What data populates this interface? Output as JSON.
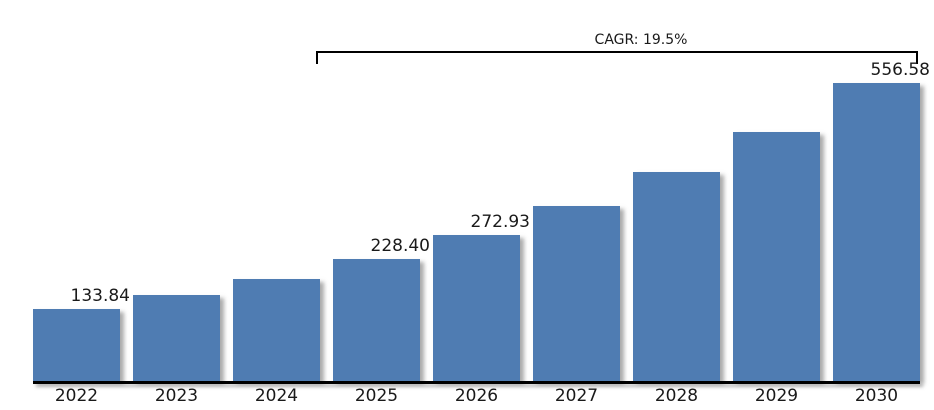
{
  "chart_data": {
    "type": "bar",
    "title": "",
    "xlabel": "",
    "ylabel": "",
    "categories": [
      "2022",
      "2023",
      "2024",
      "2025",
      "2026",
      "2027",
      "2028",
      "2029",
      "2030"
    ],
    "values": [
      133.84,
      159.94,
      191.13,
      228.4,
      272.93,
      326.15,
      389.75,
      465.75,
      556.58
    ],
    "value_labels_shown": [
      "133.84",
      "",
      "",
      "228.40",
      "272.93",
      "",
      "",
      "",
      "556.58"
    ],
    "ylim": [
      0,
      580
    ],
    "grid": false,
    "legend": "none",
    "annotation": {
      "label": "CAGR: 19.5%",
      "span_start_category": "2025",
      "span_end_category": "2030"
    }
  },
  "colors": {
    "bar_fill": "#4f7cb2",
    "axis_line": "#000000",
    "text": "#1a1a1a",
    "background": "#ffffff"
  }
}
